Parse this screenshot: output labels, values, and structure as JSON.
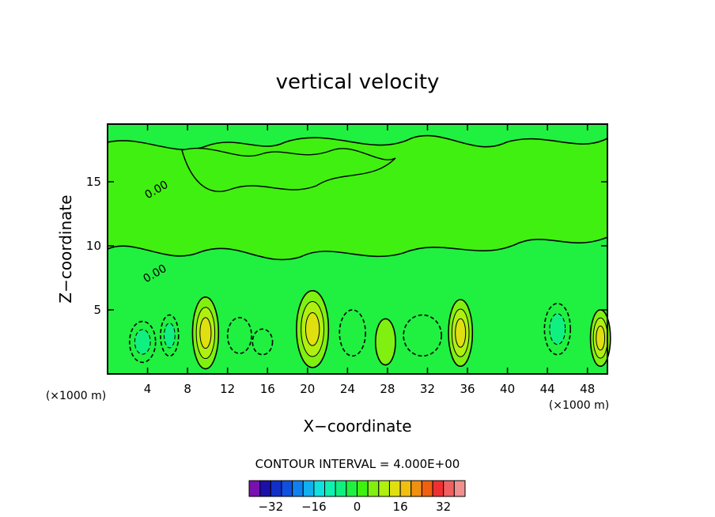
{
  "chart_data": {
    "type": "contour",
    "title": "vertical velocity",
    "xlabel": "X−coordinate",
    "ylabel": "Z−coordinate",
    "x_unit_left": "(×1000 m)",
    "x_unit_right": "(×1000 m)",
    "xlim": [
      0,
      50
    ],
    "ylim": [
      0,
      19.5
    ],
    "x_ticks": [
      4,
      8,
      12,
      16,
      20,
      24,
      28,
      32,
      36,
      40,
      44,
      48
    ],
    "x_tick_labels": [
      "4",
      "8",
      "12",
      "16",
      "20",
      "24",
      "28",
      "32",
      "36",
      "40",
      "44",
      "48"
    ],
    "y_ticks": [
      5,
      10,
      15
    ],
    "y_tick_labels": [
      "5",
      "10",
      "15"
    ],
    "contour_interval_text": "CONTOUR INTERVAL = 4.000E+00",
    "contour_interval": 4,
    "background_level": 0,
    "annotations": [
      "0.00",
      "0.00"
    ],
    "colorbar": {
      "tick_values": [
        -32,
        -16,
        0,
        16,
        32
      ],
      "tick_labels": [
        "−32",
        "−16",
        "0",
        "16",
        "32"
      ],
      "colors": [
        "#7a10b0",
        "#1c10a8",
        "#1030c8",
        "#1050e0",
        "#1080f0",
        "#10b0f0",
        "#10e0e0",
        "#10f0b0",
        "#10f080",
        "#20f040",
        "#40f010",
        "#80f010",
        "#b0f010",
        "#e0e010",
        "#f0c010",
        "#f09010",
        "#f06010",
        "#f03030",
        "#f06060",
        "#f09090"
      ]
    },
    "cells": [
      {
        "xc": 3.5,
        "zc": 2.5,
        "rx": 1.3,
        "rz": 1.6,
        "value": -8
      },
      {
        "xc": 6.2,
        "zc": 3.0,
        "rx": 0.9,
        "rz": 1.6,
        "value": -8
      },
      {
        "xc": 9.8,
        "zc": 3.2,
        "rx": 1.3,
        "rz": 2.8,
        "value": 12
      },
      {
        "xc": 13.2,
        "zc": 3.0,
        "rx": 1.2,
        "rz": 1.4,
        "value": -4
      },
      {
        "xc": 15.5,
        "zc": 2.5,
        "rx": 1.0,
        "rz": 1.0,
        "value": -4
      },
      {
        "xc": 20.5,
        "zc": 3.5,
        "rx": 1.6,
        "rz": 3.0,
        "value": 12
      },
      {
        "xc": 24.5,
        "zc": 3.2,
        "rx": 1.3,
        "rz": 1.8,
        "value": -4
      },
      {
        "xc": 27.8,
        "zc": 2.5,
        "rx": 1.0,
        "rz": 1.8,
        "value": 4
      },
      {
        "xc": 31.5,
        "zc": 3.0,
        "rx": 1.9,
        "rz": 1.6,
        "value": -4
      },
      {
        "xc": 35.3,
        "zc": 3.2,
        "rx": 1.2,
        "rz": 2.6,
        "value": 12
      },
      {
        "xc": 45.0,
        "zc": 3.5,
        "rx": 1.3,
        "rz": 2.0,
        "value": -8
      },
      {
        "xc": 49.3,
        "zc": 2.8,
        "rx": 1.0,
        "rz": 2.2,
        "value": 12
      }
    ]
  }
}
